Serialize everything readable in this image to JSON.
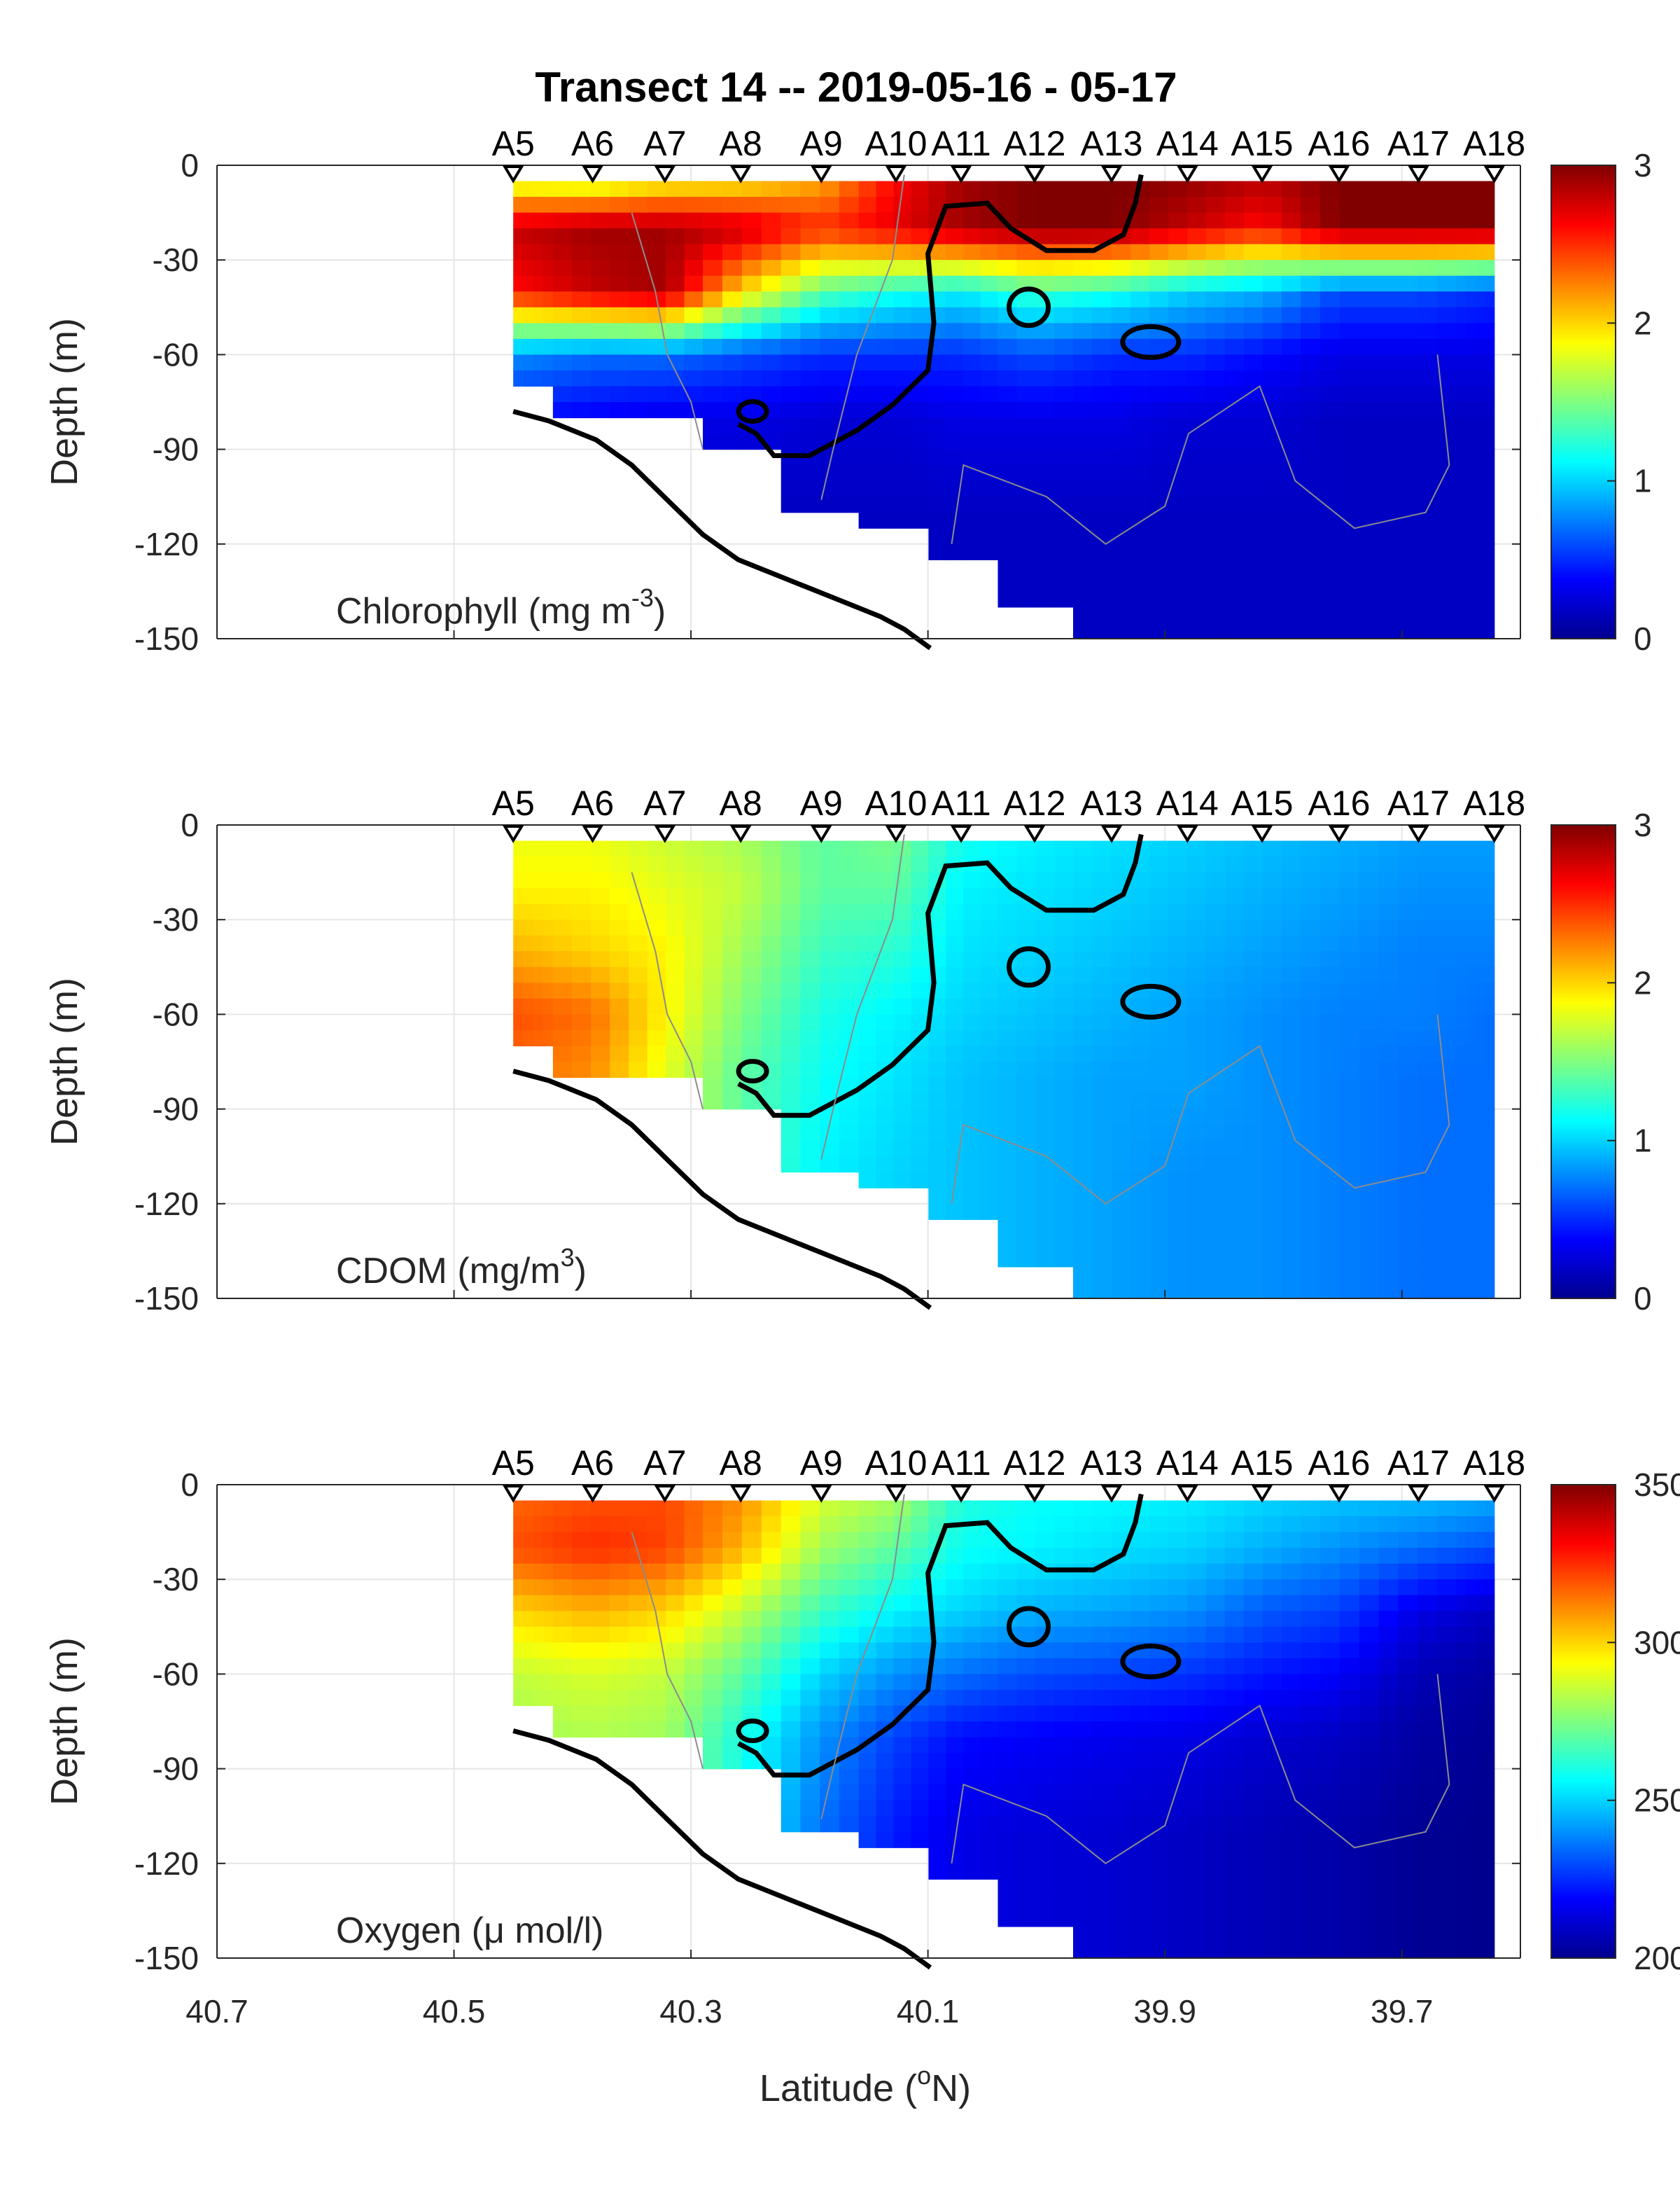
{
  "figure": {
    "title": "Transect 14 -- 2019-05-16 - 05-17",
    "xlabel": "Latitude (°N)",
    "xlabel_base": "Latitude (",
    "xlabel_sup": "o",
    "xlabel_end": "N)",
    "xticks": [
      "40.7",
      "40.5",
      "40.3",
      "40.1",
      "39.9",
      "39.7"
    ]
  },
  "chart_data": [
    {
      "type": "heatmap",
      "title": "",
      "variable": "Chlorophyll",
      "label_base": "Chlorophyll (mg m",
      "label_sup": "-3",
      "label_end": ")",
      "ylabel": "Depth (m)",
      "xlim": [
        40.7,
        39.6
      ],
      "ylim": [
        -150,
        0
      ],
      "yticks": [
        "0",
        "-30",
        "-60",
        "-90",
        "-120",
        "-150"
      ],
      "colorbar": {
        "min": 0,
        "max": 3,
        "ticks": [
          "3",
          "2",
          "1",
          "0"
        ],
        "colormap": "jet"
      },
      "stations": [
        "A5",
        "A6",
        "A7",
        "A8",
        "A9",
        "A10",
        "A11",
        "A12",
        "A13",
        "A14",
        "A15",
        "A16",
        "A17",
        "A18"
      ],
      "station_lat": [
        40.45,
        40.383,
        40.322,
        40.258,
        40.19,
        40.127,
        40.072,
        40.01,
        39.945,
        39.881,
        39.818,
        39.753,
        39.686,
        39.622
      ],
      "station_max_depth": [
        70,
        78,
        78,
        90,
        106,
        115,
        125,
        140,
        150,
        150,
        150,
        150,
        150,
        150
      ],
      "profiles_surface_to_deep": [
        [
          1.4,
          2.8,
          2.6,
          0.8,
          0.4,
          0.3,
          0.25
        ],
        [
          1.3,
          2.9,
          2.8,
          0.7,
          0.35,
          0.3,
          0.25
        ],
        [
          1.5,
          2.9,
          2.9,
          0.7,
          0.3,
          0.25,
          0.2
        ],
        [
          1.6,
          2.8,
          2.0,
          0.6,
          0.3,
          0.2,
          0.2
        ],
        [
          2.0,
          2.5,
          1.4,
          0.5,
          0.25,
          0.2,
          0.2
        ],
        [
          2.6,
          2.7,
          1.2,
          0.5,
          0.25,
          0.2,
          0.2
        ],
        [
          2.9,
          2.9,
          1.1,
          0.5,
          0.3,
          0.2,
          0.2
        ],
        [
          3.0,
          3.0,
          1.3,
          0.6,
          0.3,
          0.2,
          0.2
        ],
        [
          3.0,
          3.0,
          1.2,
          0.5,
          0.3,
          0.2,
          0.2
        ],
        [
          3.0,
          2.8,
          1.0,
          0.5,
          0.25,
          0.2,
          0.2
        ],
        [
          2.9,
          2.6,
          0.9,
          0.4,
          0.25,
          0.2,
          0.2
        ],
        [
          3.0,
          3.0,
          0.6,
          0.3,
          0.2,
          0.2,
          0.2
        ],
        [
          3.0,
          3.0,
          0.6,
          0.3,
          0.2,
          0.2,
          0.2
        ],
        [
          3.0,
          3.0,
          0.5,
          0.3,
          0.2,
          0.2,
          0.2
        ]
      ],
      "profile_depths": [
        0,
        20,
        40,
        60,
        80,
        110,
        150
      ]
    },
    {
      "type": "heatmap",
      "title": "",
      "variable": "CDOM",
      "label_base": "CDOM (mg/m",
      "label_sup": "3",
      "label_end": ")",
      "ylabel": "Depth (m)",
      "xlim": [
        40.7,
        39.6
      ],
      "ylim": [
        -150,
        0
      ],
      "yticks": [
        "0",
        "-30",
        "-60",
        "-90",
        "-120",
        "-150"
      ],
      "colorbar": {
        "min": 0,
        "max": 3,
        "ticks": [
          "3",
          "2",
          "1",
          "0"
        ],
        "colormap": "jet"
      },
      "stations": [
        "A5",
        "A6",
        "A7",
        "A8",
        "A9",
        "A10",
        "A11",
        "A12",
        "A13",
        "A14",
        "A15",
        "A16",
        "A17",
        "A18"
      ],
      "station_lat": [
        40.45,
        40.383,
        40.322,
        40.258,
        40.19,
        40.127,
        40.072,
        40.01,
        39.945,
        39.881,
        39.818,
        39.753,
        39.686,
        39.622
      ],
      "station_max_depth": [
        70,
        78,
        78,
        90,
        106,
        115,
        125,
        140,
        150,
        150,
        150,
        150,
        150,
        150
      ],
      "profiles_surface_to_deep": [
        [
          1.8,
          1.9,
          2.1,
          2.4,
          2.3,
          2.3,
          2.3
        ],
        [
          1.8,
          1.9,
          2.0,
          2.3,
          2.2,
          2.2,
          2.2
        ],
        [
          1.7,
          1.8,
          1.9,
          1.9,
          1.8,
          1.8,
          1.8
        ],
        [
          1.6,
          1.7,
          1.6,
          1.5,
          1.4,
          1.4,
          1.4
        ],
        [
          1.4,
          1.4,
          1.3,
          1.2,
          1.15,
          1.1,
          1.1
        ],
        [
          1.5,
          1.4,
          1.25,
          1.1,
          1.05,
          1.0,
          1.0
        ],
        [
          1.2,
          1.1,
          1.05,
          1.0,
          0.95,
          0.95,
          0.95
        ],
        [
          1.1,
          1.05,
          1.0,
          0.95,
          0.9,
          0.9,
          0.9
        ],
        [
          1.05,
          1.0,
          0.95,
          0.9,
          0.85,
          0.85,
          0.85
        ],
        [
          1.0,
          0.95,
          0.9,
          0.85,
          0.85,
          0.8,
          0.8
        ],
        [
          0.95,
          0.9,
          0.85,
          0.8,
          0.8,
          0.8,
          0.8
        ],
        [
          0.9,
          0.85,
          0.8,
          0.75,
          0.75,
          0.75,
          0.75
        ],
        [
          0.85,
          0.8,
          0.75,
          0.75,
          0.7,
          0.7,
          0.7
        ],
        [
          0.85,
          0.8,
          0.75,
          0.7,
          0.7,
          0.7,
          0.7
        ]
      ],
      "profile_depths": [
        0,
        20,
        40,
        60,
        80,
        110,
        150
      ]
    },
    {
      "type": "heatmap",
      "title": "",
      "variable": "Oxygen",
      "label_base": "Oxygen (μ mol/l)",
      "label_sup": "",
      "label_end": "",
      "ylabel": "Depth (m)",
      "xlim": [
        40.7,
        39.6
      ],
      "ylim": [
        -150,
        0
      ],
      "yticks": [
        "0",
        "-30",
        "-60",
        "-90",
        "-120",
        "-150"
      ],
      "colorbar": {
        "min": 200,
        "max": 350,
        "ticks": [
          "350",
          "300",
          "250",
          "200"
        ],
        "colormap": "jet"
      },
      "stations": [
        "A5",
        "A6",
        "A7",
        "A8",
        "A9",
        "A10",
        "A11",
        "A12",
        "A13",
        "A14",
        "A15",
        "A16",
        "A17",
        "A18"
      ],
      "station_lat": [
        40.45,
        40.383,
        40.322,
        40.258,
        40.19,
        40.127,
        40.072,
        40.01,
        39.945,
        39.881,
        39.818,
        39.753,
        39.686,
        39.622
      ],
      "station_max_depth": [
        70,
        78,
        78,
        90,
        106,
        115,
        125,
        140,
        150,
        150,
        150,
        150,
        150,
        150
      ],
      "profiles_surface_to_deep": [
        [
          315,
          320,
          300,
          285,
          280,
          280,
          280
        ],
        [
          318,
          325,
          305,
          288,
          282,
          282,
          282
        ],
        [
          320,
          322,
          300,
          285,
          280,
          280,
          280
        ],
        [
          312,
          305,
          285,
          270,
          260,
          258,
          258
        ],
        [
          290,
          280,
          265,
          250,
          240,
          235,
          235
        ],
        [
          285,
          270,
          255,
          240,
          228,
          222,
          222
        ],
        [
          262,
          258,
          250,
          235,
          220,
          215,
          215
        ],
        [
          258,
          255,
          245,
          230,
          218,
          213,
          213
        ],
        [
          257,
          252,
          243,
          228,
          216,
          212,
          212
        ],
        [
          255,
          250,
          240,
          226,
          215,
          210,
          210
        ],
        [
          252,
          245,
          232,
          222,
          212,
          208,
          208
        ],
        [
          250,
          240,
          228,
          218,
          210,
          206,
          206
        ],
        [
          250,
          235,
          215,
          208,
          205,
          203,
          203
        ],
        [
          248,
          230,
          210,
          205,
          203,
          202,
          202
        ]
      ],
      "profile_depths": [
        0,
        20,
        40,
        60,
        80,
        110,
        150
      ]
    }
  ]
}
